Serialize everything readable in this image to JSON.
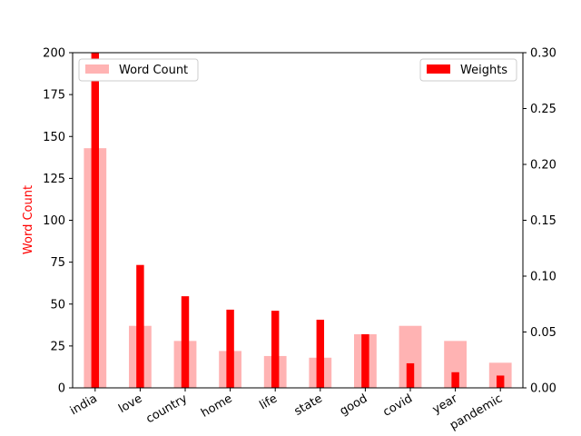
{
  "chart_data": {
    "type": "bar",
    "title": "",
    "categories": [
      "india",
      "love",
      "country",
      "home",
      "life",
      "state",
      "good",
      "covid",
      "year",
      "pandemic"
    ],
    "series": [
      {
        "name": "Word Count",
        "axis": "left",
        "color": "#ffb3b3",
        "values": [
          143,
          37,
          28,
          22,
          19,
          18,
          32,
          37,
          28,
          15
        ]
      },
      {
        "name": "Weights",
        "axis": "right",
        "color": "#ff0000",
        "values": [
          0.3,
          0.11,
          0.082,
          0.07,
          0.069,
          0.061,
          0.048,
          0.022,
          0.014,
          0.011
        ]
      }
    ],
    "xlabel": "",
    "ylabel_left": "Word Count",
    "ylabel_left_color": "#ff0000",
    "ylabel_right": "",
    "ylim_left": [
      0,
      200
    ],
    "ylim_right": [
      0,
      0.3
    ],
    "yticks_left": [
      "0",
      "25",
      "50",
      "75",
      "100",
      "125",
      "150",
      "175",
      "200"
    ],
    "yticks_right": [
      "0.00",
      "0.05",
      "0.10",
      "0.15",
      "0.20",
      "0.25",
      "0.30"
    ],
    "grid": false,
    "legends": [
      {
        "series": "Word Count",
        "placement": "upper-left"
      },
      {
        "series": "Weights",
        "placement": "upper-right"
      }
    ]
  }
}
